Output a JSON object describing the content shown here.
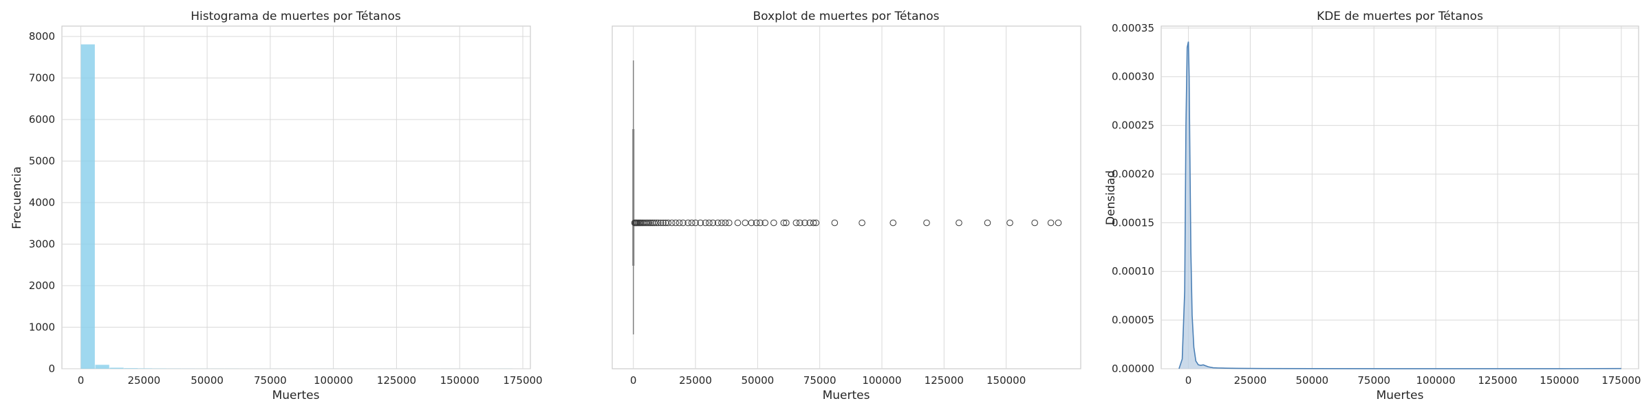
{
  "chart_data": [
    {
      "type": "bar",
      "title": "Histograma de muertes por Tétanos",
      "xlabel": "Muertes",
      "ylabel": "Frecuencia",
      "xlim": [
        -7500,
        178000
      ],
      "ylim": [
        0,
        8250
      ],
      "xticks": [
        0,
        25000,
        50000,
        75000,
        100000,
        125000,
        150000,
        175000
      ],
      "yticks": [
        0,
        1000,
        2000,
        3000,
        4000,
        5000,
        6000,
        7000,
        8000
      ],
      "bin_width": 5700,
      "bins_start": 0,
      "values": [
        7810,
        95,
        25,
        14,
        9,
        6,
        4,
        3,
        2,
        2,
        2,
        1,
        1,
        1,
        1,
        1,
        1,
        1,
        1,
        1,
        1,
        1,
        1,
        1,
        1,
        1,
        1,
        1,
        1,
        2
      ],
      "color": "#87ceeb",
      "grid": true
    },
    {
      "type": "scatter",
      "subtype": "boxplot",
      "title": "Boxplot de muertes por Tétanos",
      "xlabel": "Muertes",
      "ylabel": "",
      "xlim": [
        -8500,
        180000
      ],
      "xticks": [
        0,
        25000,
        50000,
        75000,
        100000,
        125000,
        150000
      ],
      "whisker_high": 400,
      "q3": 100,
      "outliers": [
        500,
        800,
        1100,
        1400,
        1800,
        2200,
        2600,
        3000,
        3500,
        4000,
        4600,
        5200,
        5800,
        6400,
        7000,
        7700,
        8400,
        9200,
        10000,
        11000,
        12000,
        13000,
        14000,
        15500,
        17000,
        18500,
        20000,
        22000,
        23500,
        25000,
        27000,
        29000,
        30500,
        32000,
        34000,
        35500,
        37000,
        38500,
        42000,
        45000,
        47500,
        49500,
        51000,
        53000,
        56500,
        60500,
        61500,
        65500,
        67000,
        69000,
        71000,
        72500,
        73500,
        81000,
        92000,
        104500,
        118000,
        131000,
        142500,
        151500,
        161500,
        168000,
        171000
      ],
      "color": "#808080",
      "grid": true
    },
    {
      "type": "area",
      "title": "KDE de muertes por Tétanos",
      "xlabel": "Muertes",
      "ylabel": "Densidad",
      "xlim": [
        -11000,
        182000
      ],
      "ylim": [
        0,
        0.000352
      ],
      "xticks": [
        0,
        25000,
        50000,
        75000,
        100000,
        125000,
        150000,
        175000
      ],
      "yticks": [
        0,
        5e-05,
        0.0001,
        0.00015,
        0.0002,
        0.00025,
        0.0003,
        0.00035
      ],
      "x": [
        -3800,
        -2500,
        -1500,
        -1000,
        -500,
        0,
        300,
        600,
        1000,
        1500,
        2200,
        3000,
        4000,
        5000,
        6000,
        7000,
        8000,
        9000,
        10000,
        12000,
        15000,
        20000,
        30000,
        50000,
        100000,
        150000,
        175000
      ],
      "y": [
        0,
        1e-05,
        8e-05,
        0.00025,
        0.00033,
        0.000336,
        0.0003,
        0.00022,
        0.00012,
        5.5e-05,
        2.2e-05,
        8e-06,
        4e-06,
        3.5e-06,
        4e-06,
        3e-06,
        2e-06,
        1.5e-06,
        1e-06,
        8e-07,
        6e-07,
        4e-07,
        2e-07,
        1e-07,
        5e-08,
        5e-08,
        2e-07
      ],
      "color": "#4a7fb5",
      "fill": "#b9cde3",
      "grid": true
    }
  ]
}
